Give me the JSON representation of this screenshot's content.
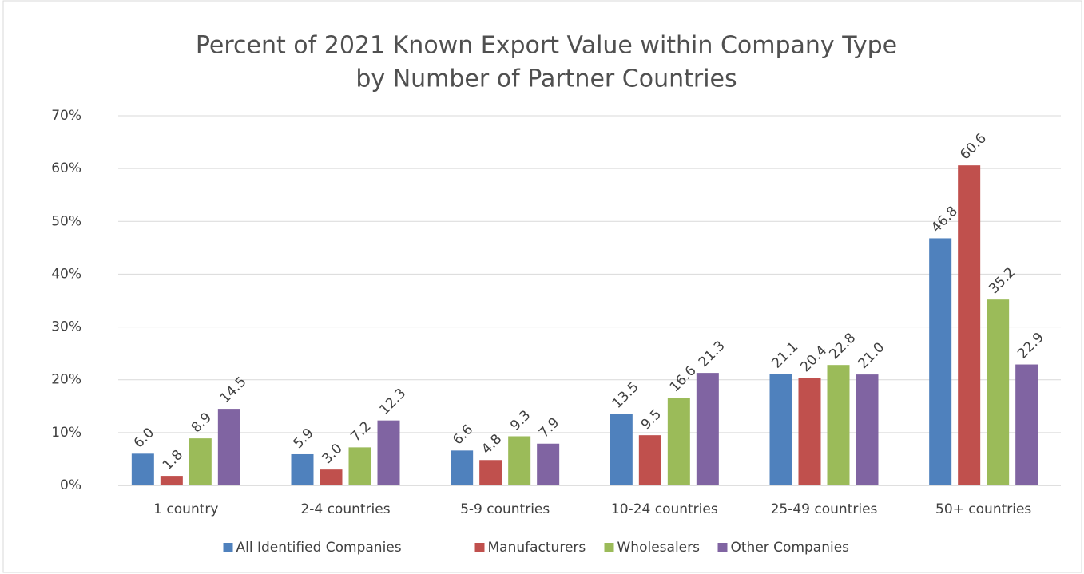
{
  "chart_data": {
    "type": "bar",
    "title": [
      "Percent of 2021 Known Export Value within Company Type",
      "by Number of Partner Countries"
    ],
    "categories": [
      "1 country",
      "2-4 countries",
      "5-9 countries",
      "10-24 countries",
      "25-49 countries",
      "50+ countries"
    ],
    "series": [
      {
        "name": "All Identified Companies",
        "color": "#4f81bd",
        "values": [
          6.0,
          5.9,
          6.6,
          13.5,
          21.1,
          46.8
        ],
        "value_labels": [
          "6.0",
          "5.9",
          "6.6",
          "13.5",
          "21.1",
          "46.8"
        ]
      },
      {
        "name": "Manufacturers",
        "color": "#c0504d",
        "values": [
          1.8,
          3.0,
          4.8,
          9.5,
          20.4,
          60.6
        ],
        "value_labels": [
          "1.8",
          "3.0",
          "4.8",
          "9.5",
          "20.4",
          "60.6"
        ]
      },
      {
        "name": "Wholesalers",
        "color": "#9bbb59",
        "values": [
          8.9,
          7.2,
          9.3,
          16.6,
          22.8,
          35.2
        ],
        "value_labels": [
          "8.9",
          "7.2",
          "9.3",
          "16.6",
          "22.8",
          "35.2"
        ]
      },
      {
        "name": "Other Companies",
        "color": "#8064a2",
        "values": [
          14.5,
          12.3,
          7.9,
          21.3,
          21.0,
          22.9
        ],
        "value_labels": [
          "14.5",
          "12.3",
          "7.9",
          "21.3",
          "21.0",
          "22.9"
        ]
      }
    ],
    "ylim": [
      0,
      70
    ],
    "yticks": [
      {
        "value": 0,
        "label": "0%"
      },
      {
        "value": 10,
        "label": "10%"
      },
      {
        "value": 20,
        "label": "20%"
      },
      {
        "value": 30,
        "label": "30%"
      },
      {
        "value": 40,
        "label": "40%"
      },
      {
        "value": 50,
        "label": "50%"
      },
      {
        "value": 60,
        "label": "60%"
      },
      {
        "value": 70,
        "label": "70%"
      }
    ],
    "grid": true,
    "legend": "bottom"
  }
}
